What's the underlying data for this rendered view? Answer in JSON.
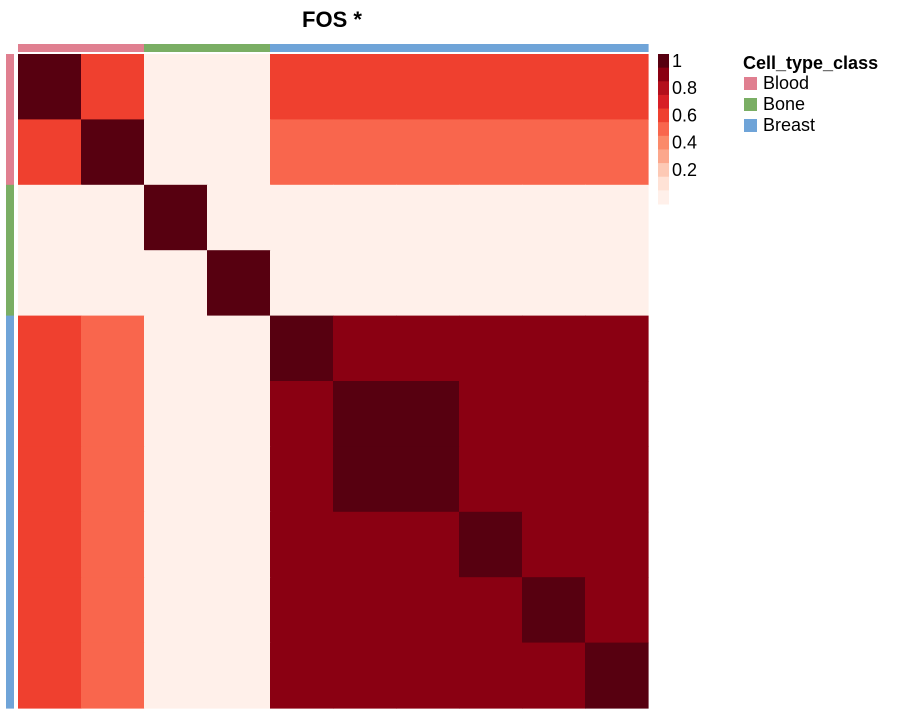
{
  "chart_data": {
    "type": "heatmap",
    "title": "FOS *",
    "samples_classes": [
      "Blood",
      "Blood",
      "Bone",
      "Bone",
      "Breast",
      "Breast",
      "Breast",
      "Breast",
      "Breast",
      "Breast"
    ],
    "matrix": [
      [
        1.0,
        0.6,
        0.0,
        0.0,
        0.6,
        0.6,
        0.6,
        0.6,
        0.6,
        0.6
      ],
      [
        0.6,
        1.0,
        0.0,
        0.0,
        0.5,
        0.5,
        0.5,
        0.5,
        0.5,
        0.5
      ],
      [
        0.0,
        0.0,
        1.0,
        0.0,
        0.0,
        0.0,
        0.0,
        0.0,
        0.0,
        0.0
      ],
      [
        0.0,
        0.0,
        0.0,
        1.0,
        0.0,
        0.0,
        0.0,
        0.0,
        0.0,
        0.0
      ],
      [
        0.6,
        0.5,
        0.0,
        0.0,
        1.0,
        0.9,
        0.9,
        0.9,
        0.9,
        0.9
      ],
      [
        0.6,
        0.5,
        0.0,
        0.0,
        0.9,
        1.0,
        1.0,
        0.9,
        0.9,
        0.9
      ],
      [
        0.6,
        0.5,
        0.0,
        0.0,
        0.9,
        1.0,
        1.0,
        0.9,
        0.9,
        0.9
      ],
      [
        0.6,
        0.5,
        0.0,
        0.0,
        0.9,
        0.9,
        0.9,
        1.0,
        0.9,
        0.9
      ],
      [
        0.6,
        0.5,
        0.0,
        0.0,
        0.9,
        0.9,
        0.9,
        0.9,
        1.0,
        0.9
      ],
      [
        0.6,
        0.5,
        0.0,
        0.0,
        0.9,
        0.9,
        0.9,
        0.9,
        0.9,
        1.0
      ]
    ],
    "color_scale": {
      "min": 0,
      "max": 1,
      "steps": [
        {
          "value": 0.0,
          "color": "#FFF0EA"
        },
        {
          "value": 0.1,
          "color": "#FFE2D6"
        },
        {
          "value": 0.2,
          "color": "#FDC9B5"
        },
        {
          "value": 0.3,
          "color": "#FCA78C"
        },
        {
          "value": 0.4,
          "color": "#FB8A6A"
        },
        {
          "value": 0.5,
          "color": "#F9664D"
        },
        {
          "value": 0.6,
          "color": "#EF402F"
        },
        {
          "value": 0.7,
          "color": "#D81F26"
        },
        {
          "value": 0.8,
          "color": "#B40F1C"
        },
        {
          "value": 0.9,
          "color": "#8A0012"
        },
        {
          "value": 1.0,
          "color": "#570010"
        }
      ],
      "tick_labels": [
        "1",
        "0.8",
        "0.6",
        "0.4",
        "0.2"
      ],
      "tick_values": [
        1.0,
        0.8,
        0.6,
        0.4,
        0.2
      ]
    },
    "legend": {
      "title": "Cell_type_class",
      "position": "top-right",
      "items": [
        {
          "label": "Blood",
          "color": "#E07F90"
        },
        {
          "label": "Bone",
          "color": "#7AAE64"
        },
        {
          "label": "Breast",
          "color": "#6FA4D8"
        }
      ]
    }
  }
}
